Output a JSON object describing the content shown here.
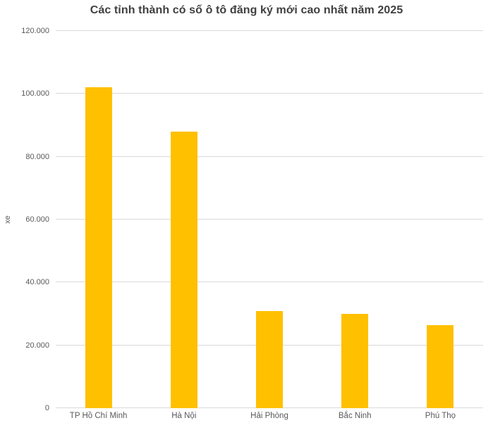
{
  "chart_data": {
    "type": "bar",
    "title": "Các tỉnh thành có số ô tô đăng ký mới cao nhất năm 2025",
    "xlabel": "",
    "ylabel": "xe",
    "categories": [
      "TP Hồ Chí Minh",
      "Hà Nội",
      "Hải Phòng",
      "Bắc Ninh",
      "Phú Thọ"
    ],
    "values": [
      102000,
      88000,
      31000,
      30000,
      26500
    ],
    "ylim": [
      0,
      120000
    ],
    "y_ticks": [
      {
        "value": 0,
        "label": "0"
      },
      {
        "value": 20000,
        "label": "20.000"
      },
      {
        "value": 40000,
        "label": "40.000"
      },
      {
        "value": 60000,
        "label": "60.000"
      },
      {
        "value": 80000,
        "label": "80.000"
      },
      {
        "value": 100000,
        "label": "100.000"
      },
      {
        "value": 120000,
        "label": "120.000"
      }
    ],
    "grid": true,
    "legend": "none",
    "colors": {
      "bar": "#FFC000",
      "gridline": "#D9D9D9",
      "axis_text": "#595959",
      "title": "#404040",
      "background": "#FFFFFF"
    }
  }
}
